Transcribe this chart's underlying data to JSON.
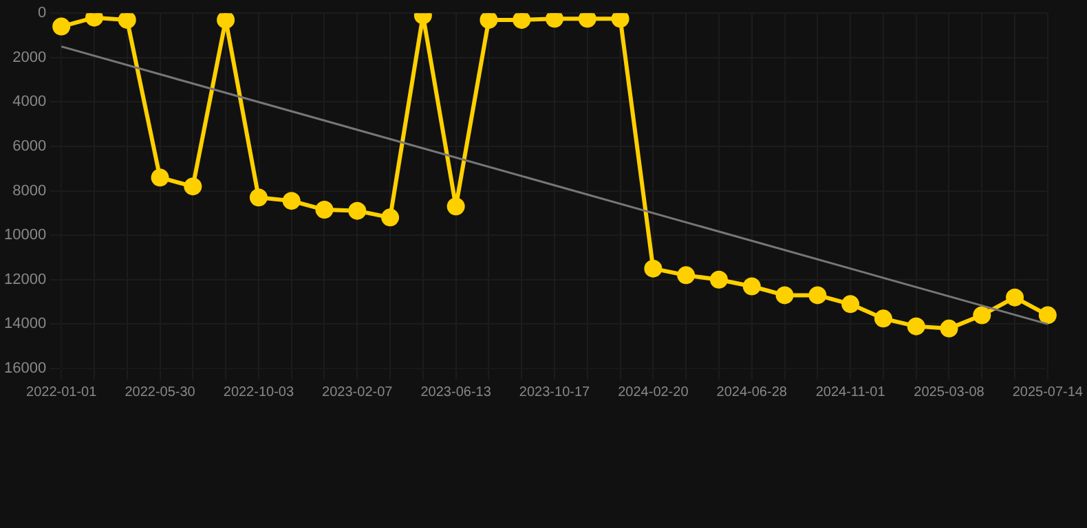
{
  "chart_data": {
    "type": "line",
    "categories": [
      "2022-01-01",
      null,
      null,
      "2022-05-30",
      null,
      null,
      "2022-10-03",
      null,
      null,
      "2023-02-07",
      null,
      null,
      "2023-06-13",
      null,
      null,
      "2023-10-17",
      null,
      null,
      "2024-02-20",
      null,
      null,
      "2024-06-28",
      null,
      null,
      "2024-11-01",
      null,
      null,
      "2025-03-08",
      null,
      null,
      "2025-07-14"
    ],
    "series": [
      {
        "color": "#ffd000",
        "marker": "circle",
        "values": [
          600,
          200,
          300,
          7400,
          7800,
          300,
          8300,
          8450,
          8850,
          8900,
          9200,
          100,
          8700,
          300,
          300,
          250,
          250,
          250,
          11500,
          11800,
          12000,
          12300,
          12700,
          12700,
          13100,
          13750,
          14100,
          14200,
          13600,
          12800,
          13600
        ]
      },
      {
        "type": "line",
        "color": "#777777",
        "marker": "none",
        "values": [
          1500,
          null,
          null,
          null,
          null,
          null,
          null,
          null,
          null,
          null,
          null,
          null,
          null,
          null,
          null,
          null,
          null,
          null,
          null,
          null,
          null,
          null,
          null,
          null,
          null,
          null,
          null,
          null,
          null,
          null,
          14000
        ]
      }
    ],
    "ylim": [
      16000,
      0
    ],
    "yticks": [
      0,
      2000,
      4000,
      6000,
      8000,
      10000,
      12000,
      14000,
      16000
    ],
    "grid": true,
    "legend": false
  }
}
